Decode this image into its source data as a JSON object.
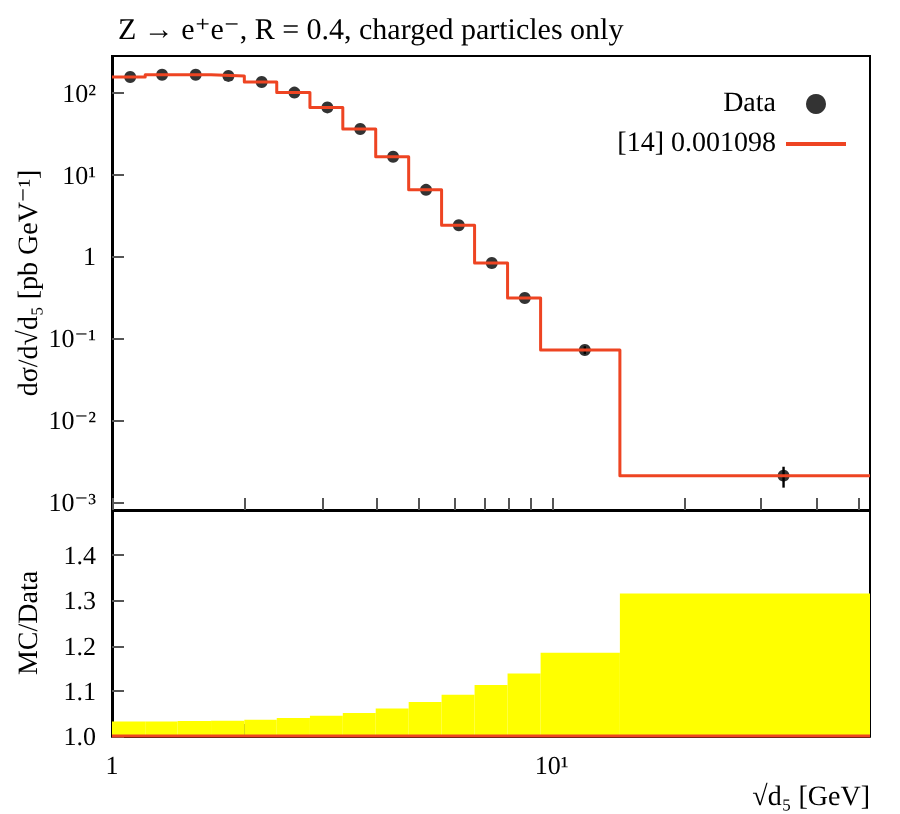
{
  "chart_data": [
    {
      "type": "step",
      "title": "Z → e⁺e⁻, R = 0.4, charged particles only",
      "ylabel": "dσ/d√d₅ [pb GeV⁻¹]",
      "series": [
        {
          "name": "Data",
          "type": "scatter",
          "marker": "circle",
          "color": "#000000",
          "x": [
            1.1,
            1.3,
            1.55,
            1.84,
            2.19,
            2.6,
            3.09,
            3.67,
            4.36,
            5.18,
            6.15,
            7.31,
            8.69,
            11.9,
            33.7
          ],
          "values": [
            155,
            165,
            165,
            160,
            135,
            100,
            66,
            36,
            16.5,
            6.5,
            2.4,
            0.83,
            0.31,
            0.072,
            0.0021
          ],
          "errors": [
            null,
            null,
            null,
            null,
            null,
            null,
            null,
            null,
            null,
            null,
            null,
            null,
            null,
            0.008,
            0.0006
          ]
        },
        {
          "name": "[14] 0.001098",
          "color": "#ee4422",
          "x": [
            1,
            1.19,
            1.41,
            1.68,
            2,
            2.37,
            2.82,
            3.35,
            3.98,
            4.73,
            5.62,
            6.68,
            7.94,
            9.44,
            14.3,
            53
          ],
          "values": [
            155,
            165,
            165,
            160,
            135,
            100,
            66,
            36,
            16.5,
            6.5,
            2.4,
            0.83,
            0.31,
            0.072,
            0.0021,
            0.0021
          ]
        }
      ],
      "log": "xy",
      "xlim": [
        1,
        53
      ],
      "ylim": [
        0.0008,
        280
      ],
      "xticks": [
        {
          "value": 1,
          "label": null
        },
        {
          "value": 2,
          "label": null
        },
        {
          "value": 3,
          "label": null
        },
        {
          "value": 4,
          "label": null
        },
        {
          "value": 5,
          "label": null
        },
        {
          "value": 6,
          "label": null
        },
        {
          "value": 7,
          "label": null
        },
        {
          "value": 8,
          "label": null
        },
        {
          "value": 9,
          "label": null
        },
        {
          "value": 10,
          "label": null
        },
        {
          "value": 20,
          "label": null
        },
        {
          "value": 30,
          "label": null
        },
        {
          "value": 40,
          "label": null
        },
        {
          "value": 50,
          "label": null
        }
      ],
      "yticks": [
        {
          "value": 0.001,
          "label": "10⁻³"
        },
        {
          "value": 0.01,
          "label": "10⁻²"
        },
        {
          "value": 0.1,
          "label": "10⁻¹"
        },
        1,
        {
          "value": 10,
          "label": "10¹"
        },
        {
          "value": 100,
          "label": "10²"
        }
      ],
      "tick_labels": "y",
      "legend": "top right",
      "grid": false
    },
    {
      "type": "histogram",
      "xlabel": "√d₅ [GeV]",
      "ylabel": "MC/Data",
      "bins": [
        1,
        1.19,
        1.41,
        1.68,
        2,
        2.37,
        2.82,
        3.35,
        3.98,
        4.73,
        5.62,
        6.68,
        7.94,
        9.44,
        14.3,
        53
      ],
      "series": [
        {
          "color": "#ffff00",
          "values": [
            1.032,
            1.032,
            1.033,
            1.034,
            1.036,
            1.04,
            1.045,
            1.051,
            1.061,
            1.075,
            1.091,
            1.113,
            1.138,
            1.184,
            1.315
          ]
        },
        {
          "type": "step",
          "color": "#ee4422",
          "x": [
            1,
            1.19,
            1.41,
            1.68,
            2,
            2.37,
            2.82,
            3.35,
            3.98,
            4.73,
            5.62,
            6.68,
            7.94,
            9.44,
            14.3,
            53
          ],
          "values": [
            1,
            1,
            1,
            1,
            1,
            1,
            1,
            1,
            1,
            1,
            1,
            1,
            1,
            1,
            1,
            1
          ]
        }
      ],
      "log": "x",
      "xlim": [
        1,
        53
      ],
      "ylim": [
        1.0,
        1.5
      ],
      "xticks": [
        1,
        {
          "value": 2,
          "label": null
        },
        {
          "value": 3,
          "label": null
        },
        {
          "value": 4,
          "label": null
        },
        {
          "value": 5,
          "label": null
        },
        {
          "value": 6,
          "label": null
        },
        {
          "value": 7,
          "label": null
        },
        {
          "value": 8,
          "label": null
        },
        {
          "value": 9,
          "label": null
        },
        {
          "value": 10,
          "label": "10¹"
        },
        {
          "value": 20,
          "label": null
        },
        {
          "value": 30,
          "label": null
        },
        {
          "value": 40,
          "label": null
        },
        {
          "value": 50,
          "label": null
        }
      ],
      "yticks": [
        {
          "value": 1,
          "label": "1.0"
        },
        {
          "value": 1.1,
          "label": "1.1"
        },
        {
          "value": 1.2,
          "label": "1.2"
        },
        {
          "value": 1.3,
          "label": "1.3"
        },
        {
          "value": 1.4,
          "label": "1.4"
        }
      ],
      "grid": false
    }
  ]
}
